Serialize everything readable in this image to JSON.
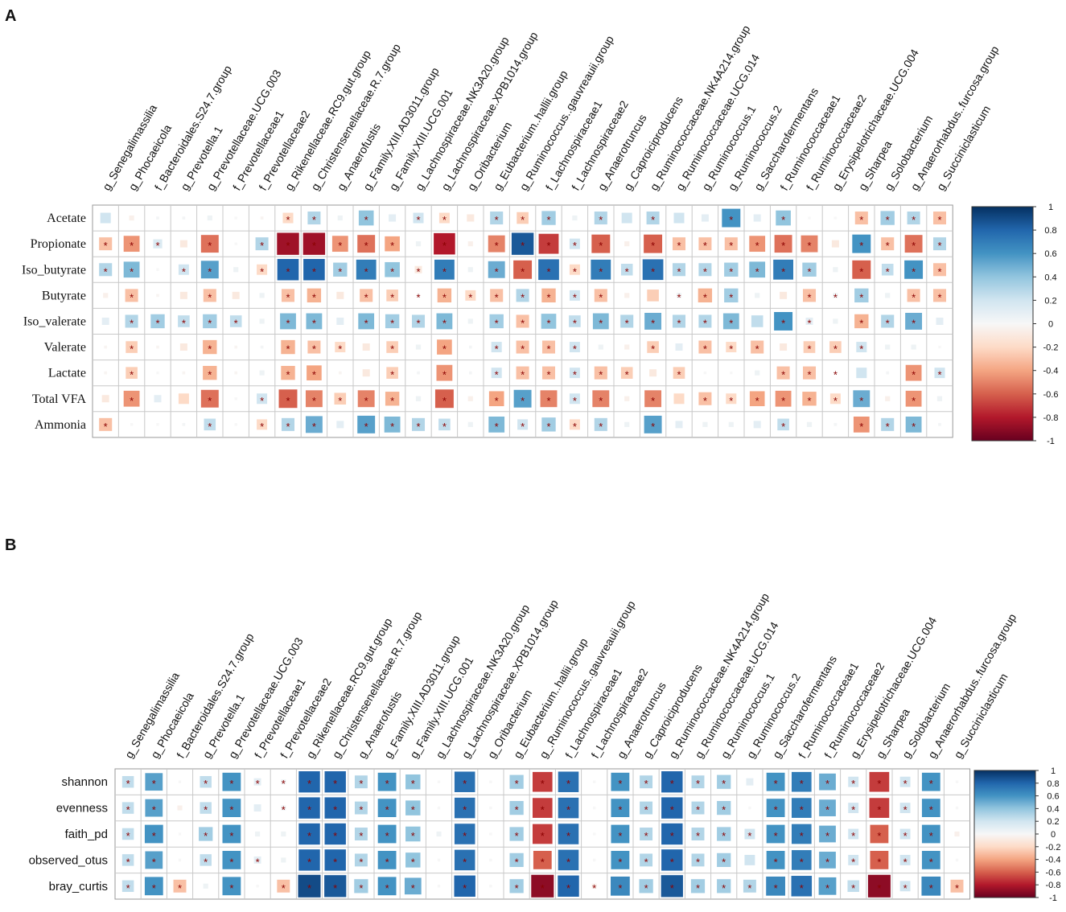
{
  "panels": [
    {
      "label": "A",
      "rows": [
        "Acetate",
        "Propionate",
        "Iso_butyrate",
        "Butyrate",
        "Iso_valerate",
        "Valerate",
        "Lactate",
        "Total VFA",
        "Ammonia"
      ],
      "cols": [
        "g_Senegalimassilia",
        "g_Phocaeicola",
        "f_Bacteroidales.S24.7.group",
        "g_Prevotella.1",
        "g_Prevotellaceae.UCG.003",
        "f_Prevotellaceae1",
        "f_Prevotellaceae2",
        "g_Rikenellaceae.RC9.gut.group",
        "g_Christensenellaceae.R.7.group",
        "g_Anaerofustis",
        "g_Family.XIII.AD3011.group",
        "g_Family.XIII.UCG.001",
        "g_Lachnospiraceae.NK3A20.group",
        "g_Lachnospiraceae.XPB1014.group",
        "g_Oribacterium",
        "g_Eubacterium..hallii.group",
        "g_Ruminococcus..gauvreauii.group",
        "f_Lachnospiraceae1",
        "f_Lachnospiraceae2",
        "g_Anaerotruncus",
        "g_Caproiciproducens",
        "g_Ruminococcaceae.NK4A214.group",
        "g_Ruminococcaceae.UCG.014",
        "g_Ruminococcus.1",
        "g_Ruminococcus.2",
        "g_Saccharofermentans",
        "f_Ruminococcaceae1",
        "f_Ruminococcaceae2",
        "g_Erysipelotrichaceae.UCG.004",
        "g_Sharpea",
        "g_Solobacterium",
        "g_Anaerorhabdus..furcosa.group",
        "g_Succiniclasticum"
      ],
      "values": [
        [
          0.2,
          -0.05,
          0.02,
          0.02,
          0.05,
          0,
          -0.02,
          -0.2,
          0.3,
          0.05,
          0.4,
          0.1,
          0.2,
          -0.2,
          -0.1,
          0.3,
          -0.25,
          0.35,
          0.05,
          0.3,
          0.2,
          0.3,
          0.2,
          0.1,
          0.6,
          0.1,
          0.4,
          0,
          0,
          -0.3,
          0.35,
          0.3,
          -0.3
        ],
        [
          -0.3,
          -0.45,
          0.15,
          -0.1,
          -0.55,
          0,
          0.3,
          -0.85,
          -0.85,
          -0.45,
          -0.55,
          -0.4,
          0.05,
          -0.8,
          -0.05,
          -0.5,
          0.85,
          -0.7,
          0.2,
          -0.6,
          -0.05,
          -0.6,
          -0.3,
          -0.3,
          -0.3,
          -0.45,
          -0.55,
          -0.5,
          -0.1,
          0.6,
          -0.3,
          -0.55,
          0.3
        ],
        [
          0.3,
          0.45,
          0,
          0.2,
          0.55,
          0.05,
          -0.2,
          0.8,
          0.8,
          0.35,
          0.7,
          0.4,
          -0.1,
          0.7,
          0.05,
          0.5,
          -0.6,
          0.75,
          -0.2,
          0.7,
          0.25,
          0.75,
          0.3,
          0.3,
          0.35,
          0.45,
          0.7,
          0.35,
          0.05,
          -0.6,
          0.25,
          0.6,
          -0.3
        ],
        [
          -0.05,
          -0.3,
          -0.02,
          -0.1,
          -0.3,
          -0.1,
          0.05,
          -0.3,
          -0.35,
          -0.1,
          -0.3,
          -0.25,
          0.02,
          -0.35,
          -0.2,
          -0.3,
          0.3,
          -0.35,
          0.2,
          -0.3,
          -0.05,
          -0.25,
          0.05,
          -0.35,
          0.35,
          0.05,
          -0.1,
          -0.3,
          0.05,
          0.35,
          0.05,
          -0.3,
          -0.3
        ],
        [
          0.1,
          0.3,
          0.35,
          0.25,
          0.35,
          0.25,
          0.05,
          0.45,
          0.45,
          0.1,
          0.45,
          0.35,
          0.3,
          0.45,
          0.05,
          0.35,
          -0.3,
          0.4,
          0.25,
          0.45,
          0.3,
          0.5,
          0.3,
          0.3,
          0.45,
          0.25,
          0.6,
          0.1,
          0.05,
          -0.35,
          0.3,
          0.5,
          0.1
        ],
        [
          -0.02,
          -0.25,
          -0.02,
          -0.1,
          -0.35,
          -0.02,
          0.02,
          -0.35,
          -0.3,
          -0.2,
          -0.1,
          -0.25,
          0.05,
          -0.4,
          0.02,
          0.2,
          -0.3,
          -0.3,
          0.2,
          0.05,
          -0.05,
          -0.25,
          0.1,
          -0.3,
          -0.2,
          -0.3,
          -0.1,
          -0.25,
          -0.25,
          0.2,
          0.05,
          0.05,
          0
        ],
        [
          -0.02,
          -0.25,
          0,
          -0.02,
          -0.35,
          -0.02,
          0.05,
          -0.35,
          -0.4,
          -0.02,
          -0.1,
          -0.25,
          0.02,
          -0.45,
          0.02,
          0.2,
          -0.3,
          -0.3,
          0.2,
          -0.3,
          -0.25,
          -0.1,
          -0.25,
          0,
          0,
          0.05,
          -0.3,
          -0.3,
          0.02,
          0.2,
          0.02,
          -0.45,
          0.2
        ],
        [
          -0.1,
          -0.45,
          0.1,
          -0.2,
          -0.55,
          0,
          0.2,
          -0.6,
          -0.5,
          -0.25,
          -0.5,
          -0.35,
          0.05,
          -0.6,
          -0.05,
          -0.4,
          0.55,
          -0.5,
          0.2,
          -0.5,
          -0.05,
          -0.5,
          -0.2,
          -0.3,
          -0.2,
          -0.4,
          -0.45,
          -0.35,
          -0.2,
          0.5,
          -0.05,
          -0.45,
          0.05
        ],
        [
          -0.3,
          0,
          0,
          0.02,
          0.25,
          0,
          -0.2,
          0.3,
          0.5,
          0.1,
          0.55,
          0.45,
          0.3,
          0.25,
          0.05,
          0.45,
          0.2,
          0.35,
          -0.2,
          0.3,
          0.05,
          0.55,
          0.1,
          0.05,
          0.05,
          0.1,
          0.25,
          0.05,
          0.02,
          -0.45,
          0.3,
          0.45,
          0.02
        ]
      ],
      "sig": [
        [
          0,
          0,
          0,
          0,
          0,
          0,
          0,
          1,
          1,
          0,
          1,
          0,
          1,
          1,
          0,
          1,
          1,
          1,
          0,
          1,
          0,
          1,
          0,
          0,
          1,
          0,
          1,
          0,
          0,
          1,
          1,
          1,
          1
        ],
        [
          1,
          1,
          1,
          0,
          1,
          0,
          1,
          1,
          1,
          1,
          1,
          1,
          0,
          1,
          0,
          1,
          1,
          1,
          1,
          1,
          0,
          1,
          1,
          1,
          1,
          1,
          1,
          1,
          0,
          1,
          1,
          1,
          1
        ],
        [
          1,
          1,
          0,
          1,
          1,
          0,
          1,
          1,
          1,
          1,
          1,
          1,
          1,
          1,
          0,
          1,
          1,
          1,
          1,
          1,
          1,
          1,
          1,
          1,
          1,
          1,
          1,
          1,
          0,
          1,
          1,
          1,
          1
        ],
        [
          0,
          1,
          0,
          0,
          1,
          0,
          0,
          1,
          1,
          0,
          1,
          1,
          1,
          1,
          1,
          1,
          1,
          1,
          1,
          1,
          0,
          0,
          1,
          1,
          1,
          0,
          0,
          1,
          1,
          1,
          0,
          1,
          1
        ],
        [
          0,
          1,
          1,
          1,
          1,
          1,
          0,
          1,
          1,
          0,
          1,
          1,
          1,
          1,
          0,
          1,
          1,
          1,
          1,
          1,
          1,
          1,
          1,
          1,
          1,
          0,
          1,
          1,
          0,
          1,
          1,
          1,
          0
        ],
        [
          0,
          1,
          0,
          0,
          1,
          0,
          0,
          1,
          1,
          1,
          0,
          1,
          0,
          1,
          0,
          1,
          1,
          1,
          1,
          0,
          0,
          1,
          0,
          1,
          1,
          1,
          0,
          1,
          1,
          1,
          0,
          0,
          0
        ],
        [
          0,
          1,
          0,
          0,
          1,
          0,
          0,
          1,
          1,
          0,
          0,
          1,
          0,
          1,
          0,
          1,
          1,
          1,
          1,
          1,
          1,
          0,
          1,
          0,
          0,
          0,
          1,
          1,
          1,
          0,
          0,
          1,
          1
        ],
        [
          0,
          1,
          0,
          0,
          1,
          0,
          1,
          1,
          1,
          1,
          1,
          1,
          0,
          1,
          0,
          1,
          1,
          1,
          1,
          1,
          0,
          1,
          0,
          1,
          1,
          1,
          1,
          1,
          1,
          1,
          0,
          1,
          0
        ],
        [
          1,
          0,
          0,
          0,
          1,
          0,
          1,
          1,
          1,
          0,
          1,
          1,
          1,
          1,
          0,
          1,
          1,
          1,
          1,
          1,
          0,
          1,
          0,
          0,
          0,
          0,
          1,
          0,
          0,
          1,
          1,
          1,
          0
        ]
      ]
    },
    {
      "label": "B",
      "rows": [
        "shannon",
        "evenness",
        "faith_pd",
        "observed_otus",
        "bray_curtis"
      ],
      "cols": [
        "g_Senegalimassilia",
        "g_Phocaeicola",
        "f_Bacteroidales.S24.7.group",
        "g_Prevotella.1",
        "g_Prevotellaceae.UCG.003",
        "f_Prevotellaceae1",
        "f_Prevotellaceae2",
        "g_Rikenellaceae.RC9.gut.group",
        "g_Christensenellaceae.R.7.group",
        "g_Anaerofustis",
        "g_Family.XIII.AD3011.group",
        "g_Family.XIII.UCG.001",
        "g_Lachnospiraceae.NK3A20.group",
        "g_Lachnospiraceae.XPB1014.group",
        "g_Oribacterium",
        "g_Eubacterium..hallii.group",
        "g_.Ruminococcus..gauvreauii.group",
        "f_Lachnospiraceae1",
        "f_Lachnospiraceae2",
        "g_Anaerotruncus",
        "g_Caproiciproducens",
        "g_Ruminococcaceae.NK4A214.group",
        "g_Ruminococcaceae.UCG.014",
        "g_Ruminococcus.1",
        "g_Ruminococcus.2",
        "g_Saccharofermentans",
        "f_Ruminococcaceae1",
        "f_Ruminococcaceae2",
        "g_Erysipelotrichaceae.UCG.004",
        "g_Sharpea",
        "g_Solobacterium",
        "g_Anaerorhabdus..furcosa.group",
        "g_Succiniclasticum"
      ],
      "values": [
        [
          0.25,
          0.55,
          0,
          0.25,
          0.6,
          0.1,
          0.05,
          0.8,
          0.8,
          0.3,
          0.6,
          0.4,
          0,
          0.75,
          0,
          0.35,
          -0.7,
          0.75,
          0,
          0.6,
          0.3,
          0.8,
          0.3,
          0.35,
          0.1,
          0.6,
          0.7,
          0.5,
          0.2,
          -0.7,
          0.2,
          0.6,
          0
        ],
        [
          0.25,
          0.55,
          -0.05,
          0.25,
          0.6,
          0.1,
          0.05,
          0.8,
          0.8,
          0.3,
          0.6,
          0.4,
          0,
          0.75,
          0,
          0.35,
          -0.7,
          0.75,
          0,
          0.6,
          0.3,
          0.8,
          0.3,
          0.35,
          0,
          0.6,
          0.7,
          0.5,
          0.2,
          -0.7,
          0.2,
          0.6,
          0
        ],
        [
          0.25,
          0.6,
          0,
          0.35,
          0.6,
          0.05,
          0.05,
          0.8,
          0.8,
          0.3,
          0.6,
          0.4,
          0.05,
          0.75,
          0,
          0.35,
          -0.7,
          0.75,
          0,
          0.6,
          0.3,
          0.8,
          0.3,
          0.35,
          0.2,
          0.6,
          0.7,
          0.5,
          0.2,
          -0.6,
          0.2,
          0.6,
          -0.05
        ],
        [
          0.25,
          0.55,
          0,
          0.25,
          0.6,
          0.1,
          0.05,
          0.8,
          0.8,
          0.3,
          0.6,
          0.4,
          0,
          0.75,
          0,
          0.35,
          -0.6,
          0.75,
          0,
          0.6,
          0.3,
          0.8,
          0.3,
          0.35,
          0.2,
          0.6,
          0.7,
          0.5,
          0.2,
          -0.6,
          0.2,
          0.6,
          0
        ],
        [
          0.25,
          0.6,
          -0.3,
          0.05,
          0.6,
          0,
          -0.3,
          0.9,
          0.85,
          0.35,
          0.6,
          0.5,
          0,
          0.8,
          0,
          0.35,
          -0.9,
          0.8,
          -0.05,
          0.65,
          0.35,
          0.85,
          0.35,
          0.35,
          0.3,
          0.65,
          0.75,
          0.55,
          0.25,
          -0.9,
          0.2,
          0.65,
          -0.3
        ]
      ],
      "sig": [
        [
          1,
          1,
          0,
          1,
          1,
          1,
          1,
          1,
          1,
          1,
          1,
          1,
          0,
          1,
          0,
          1,
          1,
          1,
          0,
          1,
          1,
          1,
          1,
          1,
          0,
          1,
          1,
          1,
          1,
          1,
          1,
          1,
          0
        ],
        [
          1,
          1,
          0,
          1,
          1,
          0,
          1,
          1,
          1,
          1,
          1,
          1,
          0,
          1,
          0,
          1,
          1,
          1,
          0,
          1,
          1,
          1,
          1,
          1,
          0,
          1,
          1,
          1,
          1,
          1,
          1,
          1,
          0
        ],
        [
          1,
          1,
          0,
          1,
          1,
          0,
          0,
          1,
          1,
          1,
          1,
          1,
          0,
          1,
          0,
          1,
          1,
          1,
          0,
          1,
          1,
          1,
          1,
          1,
          1,
          1,
          1,
          1,
          1,
          1,
          1,
          1,
          0
        ],
        [
          1,
          1,
          0,
          1,
          1,
          1,
          0,
          1,
          1,
          1,
          1,
          1,
          0,
          1,
          0,
          1,
          1,
          1,
          0,
          1,
          1,
          1,
          1,
          1,
          0,
          1,
          1,
          1,
          1,
          1,
          1,
          1,
          0
        ],
        [
          1,
          1,
          1,
          0,
          1,
          0,
          1,
          1,
          1,
          1,
          1,
          1,
          0,
          1,
          0,
          1,
          1,
          1,
          1,
          1,
          1,
          1,
          1,
          1,
          1,
          1,
          1,
          1,
          1,
          1,
          1,
          1,
          1
        ]
      ]
    }
  ],
  "colorbar": {
    "ticks": [
      "1",
      "0.8",
      "0.6",
      "0.4",
      "0.2",
      "0",
      "-0.2",
      "-0.4",
      "-0.6",
      "-0.8",
      "-1"
    ],
    "colors": {
      "pos": "#053061",
      "mid": "#ffffff",
      "neg": "#67001f"
    }
  },
  "star_symbol": "*",
  "chart_data": [
    {
      "type": "heatmap",
      "title": "A",
      "xlabel": "",
      "ylabel": "",
      "ylim": [
        -1,
        1
      ]
    },
    {
      "type": "heatmap",
      "title": "B",
      "xlabel": "",
      "ylabel": "",
      "ylim": [
        -1,
        1
      ]
    }
  ]
}
